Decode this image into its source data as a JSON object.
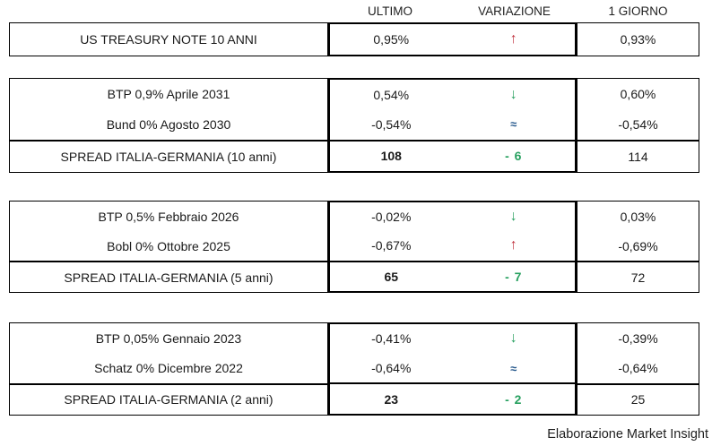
{
  "header": {
    "ultimo": "ULTIMO",
    "variazione": "VARIAZIONE",
    "giorno": "1 GIORNO"
  },
  "footer": {
    "credit": "Elaborazione Market Insight"
  },
  "colors": {
    "up_red": "#c0323e",
    "down_green": "#27a05f",
    "flat_blue": "#26588c",
    "border_black": "#000000"
  },
  "chart_data": {
    "type": "table",
    "columns": [
      "ULTIMO",
      "VARIAZIONE",
      "1 GIORNO"
    ],
    "legend": "Arrows indicate change vs previous day: up=red, down=green, unchanged=blue approx sign",
    "groups": [
      {
        "rows": [
          {
            "label": "US TREASURY NOTE 10 ANNI",
            "ultimo": "0,95%",
            "change": {
              "glyph": "↑",
              "direction": "up",
              "color": "#c0323e"
            },
            "giorno": "0,93%",
            "spread": false
          }
        ]
      },
      {
        "rows": [
          {
            "label": "BTP 0,9% Aprile 2031",
            "ultimo": "0,54%",
            "change": {
              "glyph": "↓",
              "direction": "down",
              "color": "#27a05f"
            },
            "giorno": "0,60%",
            "spread": false
          },
          {
            "label": "Bund 0% Agosto 2030",
            "ultimo": "-0,54%",
            "change": {
              "glyph": "≈",
              "direction": "flat",
              "color": "#26588c"
            },
            "giorno": "-0,54%",
            "spread": false
          },
          {
            "label": "SPREAD ITALIA-GERMANIA (10 anni)",
            "ultimo": "108",
            "change": {
              "glyph": "- 6",
              "direction": "down",
              "color": "#27a05f"
            },
            "giorno": "114",
            "spread": true
          }
        ]
      },
      {
        "rows": [
          {
            "label": "BTP 0,5% Febbraio 2026",
            "ultimo": "-0,02%",
            "change": {
              "glyph": "↓",
              "direction": "down",
              "color": "#27a05f"
            },
            "giorno": "0,03%",
            "spread": false
          },
          {
            "label": "Bobl 0% Ottobre 2025",
            "ultimo": "-0,67%",
            "change": {
              "glyph": "↑",
              "direction": "up",
              "color": "#c0323e"
            },
            "giorno": "-0,69%",
            "spread": false
          },
          {
            "label": "SPREAD ITALIA-GERMANIA (5 anni)",
            "ultimo": "65",
            "change": {
              "glyph": "- 7",
              "direction": "down",
              "color": "#27a05f"
            },
            "giorno": "72",
            "spread": true
          }
        ]
      },
      {
        "rows": [
          {
            "label": "BTP 0,05% Gennaio 2023",
            "ultimo": "-0,41%",
            "change": {
              "glyph": "↓",
              "direction": "down",
              "color": "#27a05f"
            },
            "giorno": "-0,39%",
            "spread": false
          },
          {
            "label": "Schatz 0% Dicembre 2022",
            "ultimo": "-0,64%",
            "change": {
              "glyph": "≈",
              "direction": "flat",
              "color": "#26588c"
            },
            "giorno": "-0,64%",
            "spread": false
          },
          {
            "label": "SPREAD ITALIA-GERMANIA (2 anni)",
            "ultimo": "23",
            "change": {
              "glyph": "- 2",
              "direction": "down",
              "color": "#27a05f"
            },
            "giorno": "25",
            "spread": true
          }
        ]
      }
    ]
  }
}
